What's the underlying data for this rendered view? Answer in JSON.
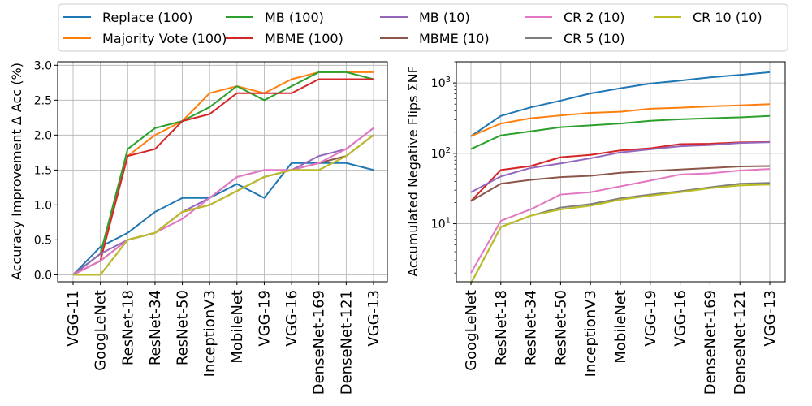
{
  "legend": {
    "placement": "top-center",
    "entries": [
      {
        "name": "Replace (100)",
        "color": "#1f77b4"
      },
      {
        "name": "MB (100)",
        "color": "#2ca02c"
      },
      {
        "name": "MB (10)",
        "color": "#9467bd"
      },
      {
        "name": "CR 2 (10)",
        "color": "#e377c2"
      },
      {
        "name": "CR 10 (10)",
        "color": "#bcbd22"
      },
      {
        "name": "Majority Vote (100)",
        "color": "#ff7f0e"
      },
      {
        "name": "MBME (100)",
        "color": "#d62728"
      },
      {
        "name": "MBME (10)",
        "color": "#8c564b"
      },
      {
        "name": "CR 5 (10)",
        "color": "#7f7f7f"
      }
    ]
  },
  "chart_data": [
    {
      "type": "line",
      "title": "",
      "xlabel": "",
      "ylabel": "Accuracy Improvement Δ Acc (%)",
      "ylim": [
        -0.1,
        3.05
      ],
      "yticks": [
        0.0,
        0.5,
        1.0,
        1.5,
        2.0,
        2.5,
        3.0
      ],
      "ytick_labels": [
        "0.0",
        "0.5",
        "1.0",
        "1.5",
        "2.0",
        "2.5",
        "3.0"
      ],
      "grid": true,
      "categories": [
        "VGG-11",
        "GoogLeNet",
        "ResNet-18",
        "ResNet-34",
        "ResNet-50",
        "InceptionV3",
        "MobileNet",
        "VGG-19",
        "VGG-16",
        "DenseNet-169",
        "DenseNet-121",
        "VGG-13"
      ],
      "series": [
        {
          "name": "Replace (100)",
          "color": "#1f77b4",
          "values": [
            0.0,
            0.4,
            0.6,
            0.9,
            1.1,
            1.1,
            1.3,
            1.1,
            1.6,
            1.6,
            1.6,
            1.5
          ]
        },
        {
          "name": "Majority Vote (100)",
          "color": "#ff7f0e",
          "values": [
            0.0,
            0.3,
            1.7,
            2.0,
            2.2,
            2.6,
            2.7,
            2.6,
            2.8,
            2.9,
            2.9,
            2.9
          ]
        },
        {
          "name": "MB (100)",
          "color": "#2ca02c",
          "values": [
            0.0,
            0.3,
            1.8,
            2.1,
            2.2,
            2.4,
            2.7,
            2.5,
            2.7,
            2.9,
            2.9,
            2.8
          ]
        },
        {
          "name": "MBME (100)",
          "color": "#d62728",
          "values": [
            0.0,
            0.2,
            1.7,
            1.8,
            2.2,
            2.3,
            2.6,
            2.6,
            2.6,
            2.8,
            2.8,
            2.8
          ]
        },
        {
          "name": "MB (10)",
          "color": "#9467bd",
          "values": [
            0.0,
            0.3,
            0.5,
            0.6,
            0.9,
            1.1,
            1.4,
            1.5,
            1.5,
            1.7,
            1.8,
            2.1
          ]
        },
        {
          "name": "MBME (10)",
          "color": "#8c564b",
          "values": [
            0.0,
            0.2,
            0.5,
            0.6,
            0.9,
            1.0,
            1.2,
            1.4,
            1.5,
            1.6,
            1.7,
            2.0
          ]
        },
        {
          "name": "CR 2 (10)",
          "color": "#e377c2",
          "values": [
            0.0,
            0.2,
            0.5,
            0.6,
            0.8,
            1.1,
            1.4,
            1.5,
            1.5,
            1.6,
            1.8,
            2.1
          ]
        },
        {
          "name": "CR 5 (10)",
          "color": "#7f7f7f",
          "values": [
            0.0,
            0.0,
            0.5,
            0.6,
            0.9,
            1.0,
            1.2,
            1.4,
            1.5,
            1.5,
            1.7,
            2.0
          ]
        },
        {
          "name": "CR 10 (10)",
          "color": "#bcbd22",
          "values": [
            0.0,
            0.0,
            0.5,
            0.6,
            0.9,
            1.0,
            1.2,
            1.4,
            1.5,
            1.5,
            1.7,
            2.0
          ]
        }
      ]
    },
    {
      "type": "line",
      "title": "",
      "xlabel": "",
      "ylabel": "Accumulated Negative Flips ΣNF",
      "yscale": "log",
      "ylim": [
        1.5,
        2000
      ],
      "ytick_labels": [
        {
          "base": "10",
          "exp": "1",
          "value": 10
        },
        {
          "base": "10",
          "exp": "2",
          "value": 100
        },
        {
          "base": "10",
          "exp": "3",
          "value": 1000
        }
      ],
      "grid": true,
      "categories": [
        "GoogLeNet",
        "ResNet-18",
        "ResNet-34",
        "ResNet-50",
        "InceptionV3",
        "MobileNet",
        "VGG-19",
        "VGG-16",
        "DenseNet-169",
        "DenseNet-121",
        "VGG-13"
      ],
      "series": [
        {
          "name": "Replace (100)",
          "color": "#1f77b4",
          "values": [
            175,
            340,
            450,
            560,
            710,
            840,
            980,
            1080,
            1200,
            1300,
            1420
          ]
        },
        {
          "name": "Majority Vote (100)",
          "color": "#ff7f0e",
          "values": [
            175,
            265,
            315,
            345,
            375,
            390,
            430,
            445,
            465,
            480,
            500
          ]
        },
        {
          "name": "MB (100)",
          "color": "#2ca02c",
          "values": [
            115,
            180,
            205,
            235,
            250,
            265,
            290,
            305,
            315,
            325,
            340
          ]
        },
        {
          "name": "MBME (100)",
          "color": "#d62728",
          "values": [
            21,
            58,
            66,
            88,
            95,
            110,
            118,
            135,
            137,
            143,
            145
          ]
        },
        {
          "name": "MB (10)",
          "color": "#9467bd",
          "values": [
            28,
            47,
            62,
            72,
            85,
            103,
            114,
            126,
            131,
            140,
            144
          ]
        },
        {
          "name": "MBME (10)",
          "color": "#8c564b",
          "values": [
            21,
            37,
            42,
            46,
            48,
            53,
            56,
            59,
            62,
            65,
            66
          ]
        },
        {
          "name": "CR 2 (10)",
          "color": "#e377c2",
          "values": [
            2,
            11,
            16,
            26,
            28,
            34,
            41,
            50,
            52,
            57,
            60
          ]
        },
        {
          "name": "CR 5 (10)",
          "color": "#7f7f7f",
          "values": [
            null,
            9,
            13,
            17,
            19,
            23,
            26,
            29,
            33,
            37,
            38
          ]
        },
        {
          "name": "CR 10 (10)",
          "color": "#bcbd22",
          "values": [
            null,
            9,
            13,
            16,
            18,
            22,
            25,
            28,
            32,
            35,
            36
          ]
        }
      ]
    }
  ]
}
